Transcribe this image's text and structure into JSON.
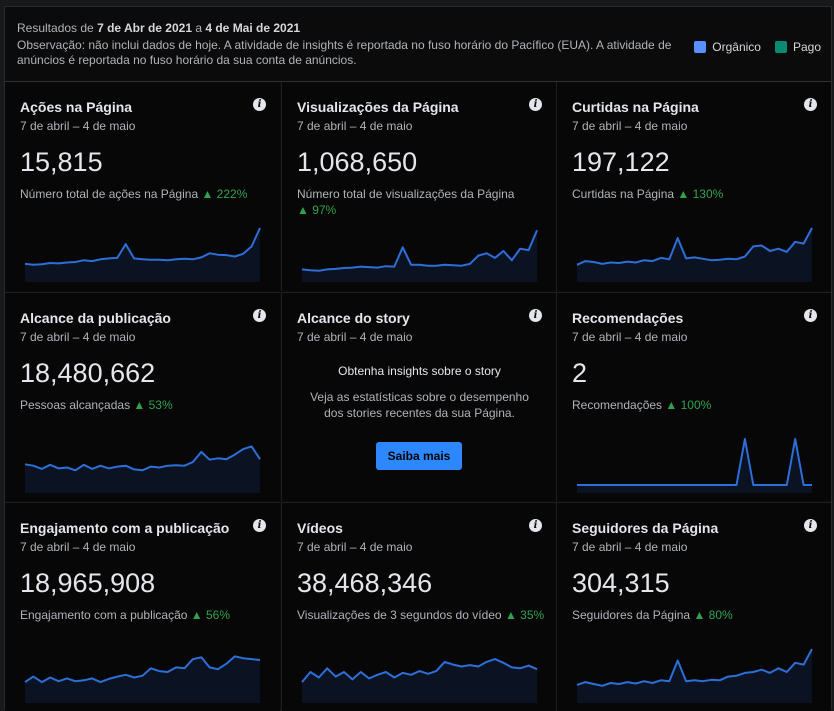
{
  "header": {
    "range_prefix": "Resultados de ",
    "range_start": "7 de Abr de 2021",
    "range_mid": " a ",
    "range_end": "4 de Mai de 2021",
    "note": "Observação: não inclui dados de hoje. A atividade de insights é reportada no fuso horário do Pacífico (EUA). A atividade de anúncios é reportada no fuso horário da sua conta de anúncios.",
    "legend": [
      {
        "label": "Orgânico",
        "color": "#5890ff"
      },
      {
        "label": "Pago",
        "color": "#0a8a73"
      }
    ]
  },
  "info_glyph": "i",
  "cards": [
    {
      "title": "Ações na Página",
      "date": "7 de abril – 4 de maio",
      "value": "15,815",
      "label": "Número total de ações na Página",
      "change": "▲ 222%",
      "series": [
        0.22,
        0.2,
        0.21,
        0.24,
        0.23,
        0.25,
        0.26,
        0.3,
        0.28,
        0.32,
        0.34,
        0.35,
        0.65,
        0.34,
        0.32,
        0.31,
        0.31,
        0.3,
        0.32,
        0.33,
        0.32,
        0.36,
        0.45,
        0.42,
        0.41,
        0.38,
        0.44,
        0.6,
        1.0
      ]
    },
    {
      "title": "Visualizações da Página",
      "date": "7 de abril – 4 de maio",
      "value": "1,068,650",
      "label": "Número total de visualizações da Página",
      "change": "▲ 97%",
      "series": [
        0.1,
        0.08,
        0.07,
        0.1,
        0.11,
        0.13,
        0.14,
        0.16,
        0.15,
        0.14,
        0.17,
        0.16,
        0.58,
        0.2,
        0.2,
        0.18,
        0.18,
        0.2,
        0.19,
        0.18,
        0.22,
        0.4,
        0.45,
        0.35,
        0.5,
        0.3,
        0.55,
        0.52,
        0.95
      ]
    },
    {
      "title": "Curtidas na Página",
      "date": "7 de abril – 4 de maio",
      "value": "197,122",
      "label": "Curtidas na Página",
      "change": "▲ 130%",
      "series": [
        0.2,
        0.28,
        0.26,
        0.22,
        0.25,
        0.24,
        0.27,
        0.25,
        0.3,
        0.28,
        0.35,
        0.32,
        0.78,
        0.34,
        0.36,
        0.33,
        0.3,
        0.31,
        0.33,
        0.32,
        0.38,
        0.6,
        0.62,
        0.5,
        0.55,
        0.48,
        0.7,
        0.66,
        1.0
      ]
    },
    {
      "title": "Alcance da publicação",
      "date": "7 de abril – 4 de maio",
      "value": "18,480,662",
      "label": "Pessoas alcançadas",
      "change": "▲ 53%",
      "series": [
        0.45,
        0.42,
        0.35,
        0.44,
        0.36,
        0.38,
        0.32,
        0.44,
        0.35,
        0.42,
        0.36,
        0.4,
        0.42,
        0.34,
        0.32,
        0.4,
        0.38,
        0.42,
        0.43,
        0.42,
        0.5,
        0.72,
        0.55,
        0.58,
        0.56,
        0.66,
        0.78,
        0.84,
        0.56
      ]
    },
    {
      "title": "Alcance do story",
      "date": "7 de abril – 4 de maio",
      "story": true,
      "heading": "Obtenha insights sobre o story",
      "text": "Veja as estatísticas sobre o desempenho dos stories recentes da sua Página.",
      "button": "Saiba mais"
    },
    {
      "title": "Recomendações",
      "date": "7 de abril – 4 de maio",
      "value": "2",
      "label": "Recomendações",
      "change": "▲ 100%",
      "series": [
        0,
        0,
        0,
        0,
        0,
        0,
        0,
        0,
        0,
        0,
        0,
        0,
        0,
        0,
        0,
        0,
        0,
        0,
        0,
        0,
        1,
        0,
        0,
        0,
        0,
        0,
        1,
        0,
        0
      ]
    },
    {
      "title": "Engajamento com a publicação",
      "date": "7 de abril – 4 de maio",
      "value": "18,965,908",
      "label": "Engajamento com a publicação",
      "change": "▲ 56%",
      "series": [
        0.28,
        0.4,
        0.28,
        0.38,
        0.3,
        0.36,
        0.3,
        0.32,
        0.36,
        0.28,
        0.35,
        0.4,
        0.44,
        0.38,
        0.42,
        0.58,
        0.52,
        0.5,
        0.6,
        0.58,
        0.78,
        0.82,
        0.6,
        0.56,
        0.68,
        0.84,
        0.8,
        0.78,
        0.76
      ]
    },
    {
      "title": "Vídeos",
      "date": "7 de abril – 4 de maio",
      "value": "38,468,346",
      "label": "Visualizações de 3 segundos do vídeo",
      "change": "▲ 35%",
      "series": [
        0.28,
        0.5,
        0.38,
        0.58,
        0.4,
        0.5,
        0.34,
        0.5,
        0.36,
        0.44,
        0.5,
        0.38,
        0.48,
        0.44,
        0.52,
        0.46,
        0.52,
        0.72,
        0.66,
        0.62,
        0.65,
        0.62,
        0.72,
        0.78,
        0.7,
        0.6,
        0.58,
        0.64,
        0.56
      ]
    },
    {
      "title": "Seguidores da Página",
      "date": "7 de abril – 4 de maio",
      "value": "304,315",
      "label": "Seguidores da Página",
      "change": "▲ 80%",
      "series": [
        0.22,
        0.28,
        0.24,
        0.2,
        0.26,
        0.24,
        0.28,
        0.25,
        0.3,
        0.26,
        0.32,
        0.3,
        0.75,
        0.3,
        0.32,
        0.3,
        0.33,
        0.32,
        0.4,
        0.42,
        0.48,
        0.5,
        0.55,
        0.48,
        0.58,
        0.5,
        0.7,
        0.66,
        1.0
      ]
    }
  ]
}
